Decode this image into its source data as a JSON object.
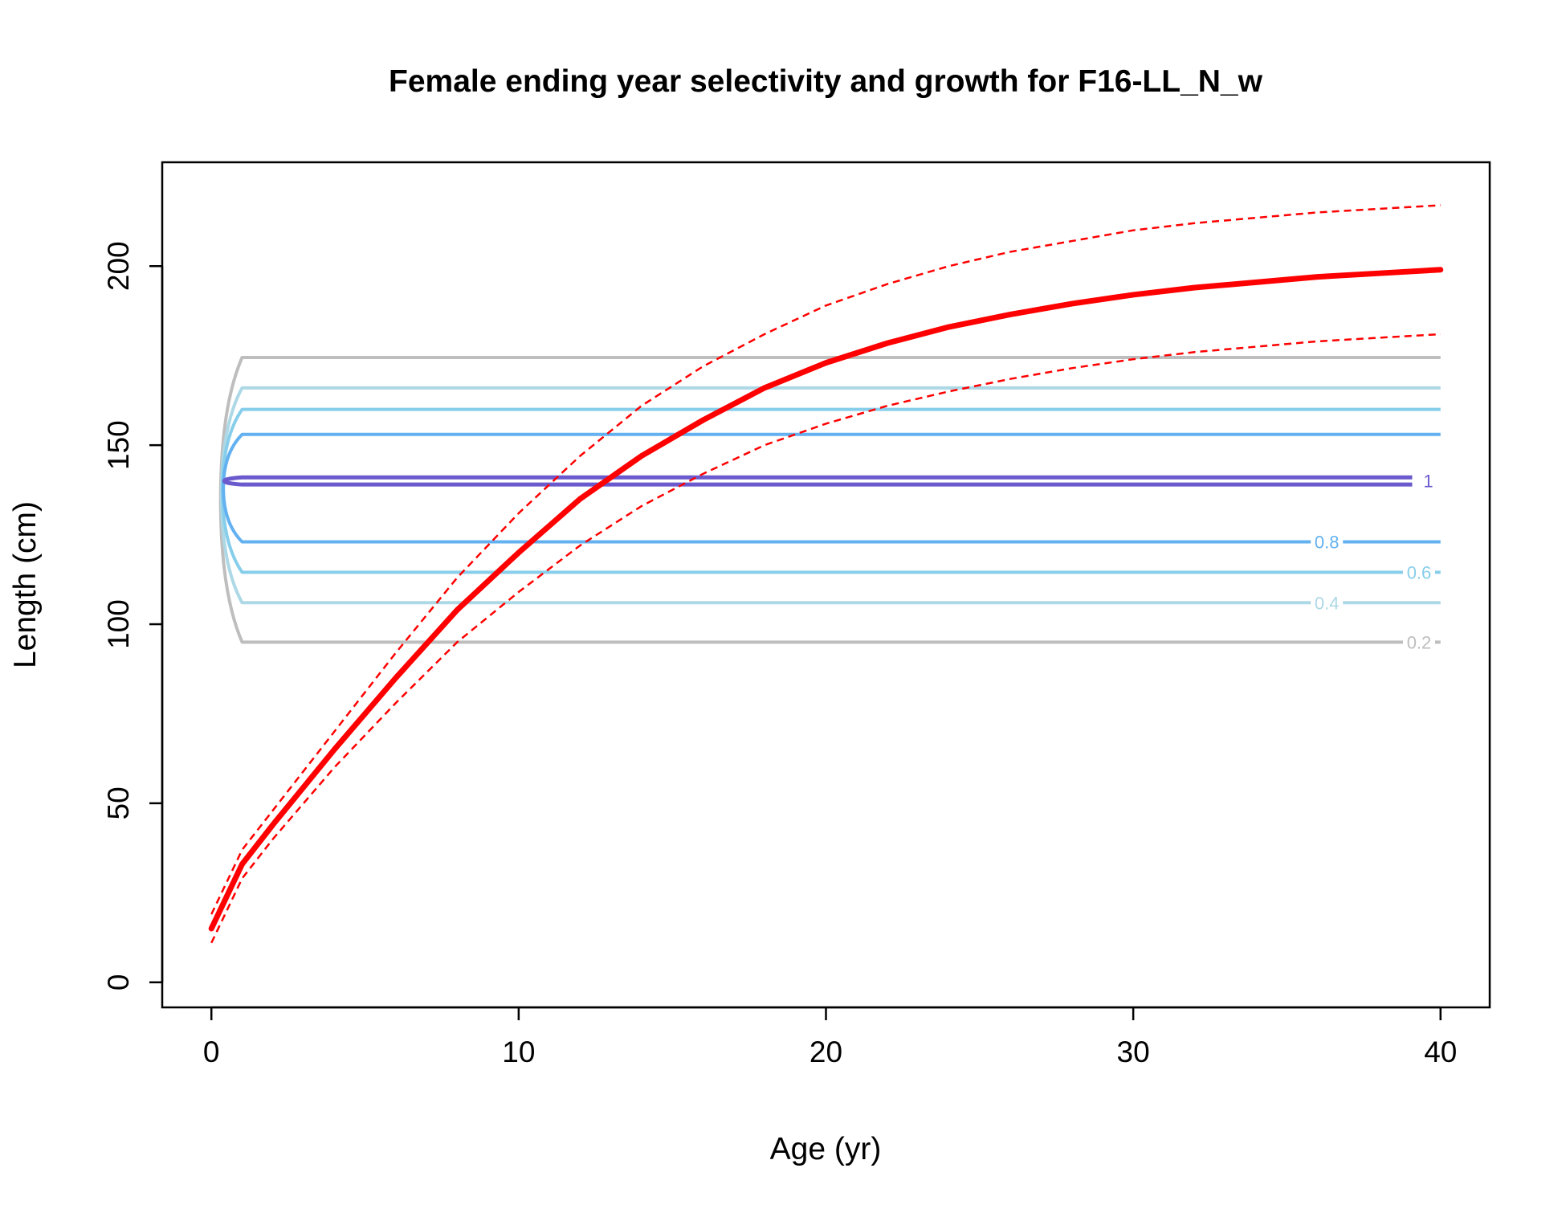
{
  "chart_data": {
    "type": "line",
    "title": "Female ending year selectivity and growth for F16-LL_N_w",
    "xlabel": "Age (yr)",
    "ylabel": "Length (cm)",
    "xlim": [
      -1.6,
      41.6
    ],
    "ylim": [
      -7,
      229
    ],
    "x_ticks": [
      0,
      10,
      20,
      30,
      40
    ],
    "y_ticks": [
      0,
      50,
      100,
      150,
      200
    ],
    "x_tick_labels": [
      "0",
      "10",
      "20",
      "30",
      "40"
    ],
    "y_tick_labels": [
      "0",
      "50",
      "100",
      "150",
      "200"
    ],
    "grid": false,
    "legend": "none",
    "growth": {
      "color": "#ff0000",
      "mean": {
        "x": [
          0,
          1,
          2,
          4,
          6,
          8,
          10,
          12,
          14,
          16,
          18,
          20,
          22,
          24,
          26,
          28,
          30,
          32,
          34,
          36,
          38,
          40
        ],
        "y": [
          15,
          33,
          44,
          65,
          85,
          104,
          120,
          135,
          147,
          157,
          166,
          173,
          178.5,
          183,
          186.5,
          189.5,
          192,
          194,
          195.5,
          197,
          198,
          199
        ]
      },
      "upper_interval": {
        "x": [
          0,
          1,
          2,
          4,
          6,
          8,
          10,
          12,
          14,
          16,
          18,
          20,
          22,
          24,
          26,
          28,
          30,
          32,
          34,
          36,
          38,
          40
        ],
        "y": [
          19,
          37,
          48,
          70,
          92,
          113,
          131,
          147,
          161,
          172,
          181,
          189,
          195,
          200,
          204,
          207,
          210,
          212,
          213.5,
          215,
          216,
          217
        ]
      },
      "lower_interval": {
        "x": [
          0,
          1,
          2,
          4,
          6,
          8,
          10,
          12,
          14,
          16,
          18,
          20,
          22,
          24,
          26,
          28,
          30,
          32,
          34,
          36,
          38,
          40
        ],
        "y": [
          11,
          29,
          40,
          60,
          78,
          95,
          109,
          122,
          133,
          142,
          150,
          156,
          161,
          165,
          168.5,
          171.5,
          174,
          176,
          177.5,
          179,
          180,
          181
        ]
      }
    },
    "selectivity_contours": [
      {
        "level": "0.2",
        "color": "#bebebe",
        "y_low": 95,
        "y_high": 174.5,
        "label": "0.2",
        "label_x": 39.3,
        "label_y": 95
      },
      {
        "level": "0.4",
        "color": "#add8e6",
        "y_low": 106,
        "y_high": 166,
        "label": "0.4",
        "label_x": 36.3,
        "label_y": 106
      },
      {
        "level": "0.6",
        "color": "#87ceeb",
        "y_low": 114.5,
        "y_high": 160,
        "label": "0.6",
        "label_x": 39.3,
        "label_y": 114.5
      },
      {
        "level": "0.8",
        "color": "#63b1f0",
        "y_low": 123,
        "y_high": 153,
        "label": "0.8",
        "label_x": 36.3,
        "label_y": 123
      },
      {
        "level": "1",
        "color": "#6a5acd",
        "y_low": 139,
        "y_high": 141,
        "label": "1",
        "label_x": 39.6,
        "label_y": 140
      }
    ]
  }
}
